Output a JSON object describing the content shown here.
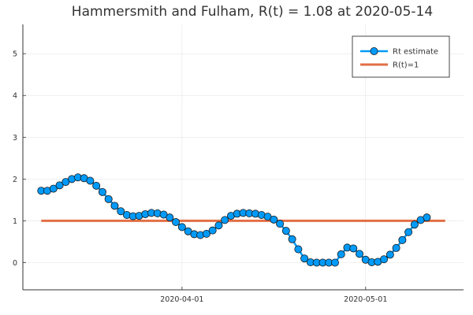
{
  "chart_data": {
    "type": "line",
    "title": "Hammersmith and Fulham, R(t) = 1.08 at 2020-05-14",
    "xlabel": "",
    "ylabel": "",
    "x_start": "2020-03-09",
    "x_end": "2020-05-14",
    "xlim": [
      "2020-03-06",
      "2020-05-17"
    ],
    "ylim": [
      -0.65,
      5.7
    ],
    "x_ticks": [
      "2020-04-01",
      "2020-05-01"
    ],
    "y_ticks": [
      0,
      1,
      2,
      3,
      4,
      5
    ],
    "grid": true,
    "legend_position": "top-right",
    "series": [
      {
        "name": "Rt estimate",
        "color": "#009af9",
        "marker": "circle",
        "values": [
          1.72,
          1.72,
          1.77,
          1.85,
          1.93,
          2.0,
          2.04,
          2.02,
          1.96,
          1.84,
          1.69,
          1.52,
          1.36,
          1.23,
          1.14,
          1.11,
          1.12,
          1.16,
          1.19,
          1.18,
          1.15,
          1.08,
          0.97,
          0.85,
          0.75,
          0.68,
          0.66,
          0.69,
          0.77,
          0.89,
          1.02,
          1.12,
          1.17,
          1.19,
          1.18,
          1.17,
          1.14,
          1.1,
          1.03,
          0.93,
          0.76,
          0.56,
          0.32,
          0.1,
          0.01,
          0.0,
          0.0,
          0.0,
          0.0,
          0.2,
          0.36,
          0.34,
          0.21,
          0.07,
          0.01,
          0.02,
          0.08,
          0.19,
          0.35,
          0.54,
          0.73,
          0.91,
          1.02,
          1.08
        ]
      },
      {
        "name": "R(t)=1",
        "color": "#e26f46",
        "y": 1
      }
    ]
  }
}
